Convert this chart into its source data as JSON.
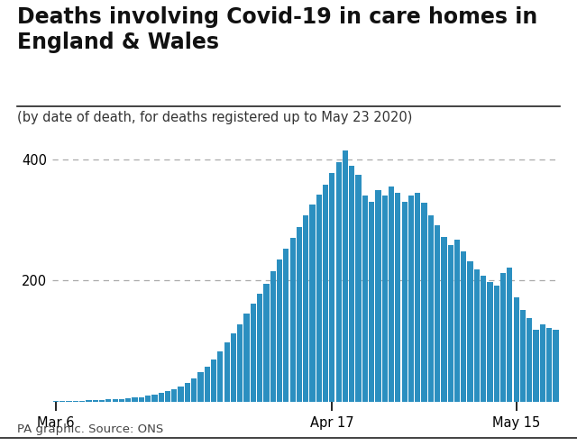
{
  "title": "Deaths involving Covid-19 in care homes in\nEngland & Wales",
  "subtitle": "(by date of death, for deaths registered up to May 23 2020)",
  "source": "PA graphic. Source: ONS",
  "bar_color": "#2b8fc0",
  "background_color": "#ffffff",
  "title_fontsize": 17,
  "subtitle_fontsize": 10.5,
  "source_fontsize": 9.5,
  "ylim": [
    0,
    450
  ],
  "yticks": [
    200,
    400
  ],
  "x_tick_labels": [
    "Mar 6",
    "Apr 17",
    "May 15"
  ],
  "x_tick_days": [
    0,
    42,
    70
  ],
  "values": [
    1,
    1,
    1,
    1,
    1,
    2,
    2,
    2,
    3,
    3,
    4,
    5,
    6,
    7,
    9,
    11,
    14,
    17,
    20,
    25,
    30,
    38,
    48,
    58,
    70,
    83,
    97,
    112,
    128,
    145,
    162,
    178,
    195,
    215,
    235,
    252,
    270,
    288,
    308,
    325,
    342,
    358,
    378,
    395,
    415,
    390,
    375,
    340,
    330,
    350,
    340,
    355,
    345,
    330,
    340,
    345,
    328,
    308,
    292,
    272,
    258,
    268,
    248,
    232,
    218,
    208,
    198,
    192,
    213,
    222,
    172,
    152,
    138,
    118,
    128,
    122,
    118
  ]
}
